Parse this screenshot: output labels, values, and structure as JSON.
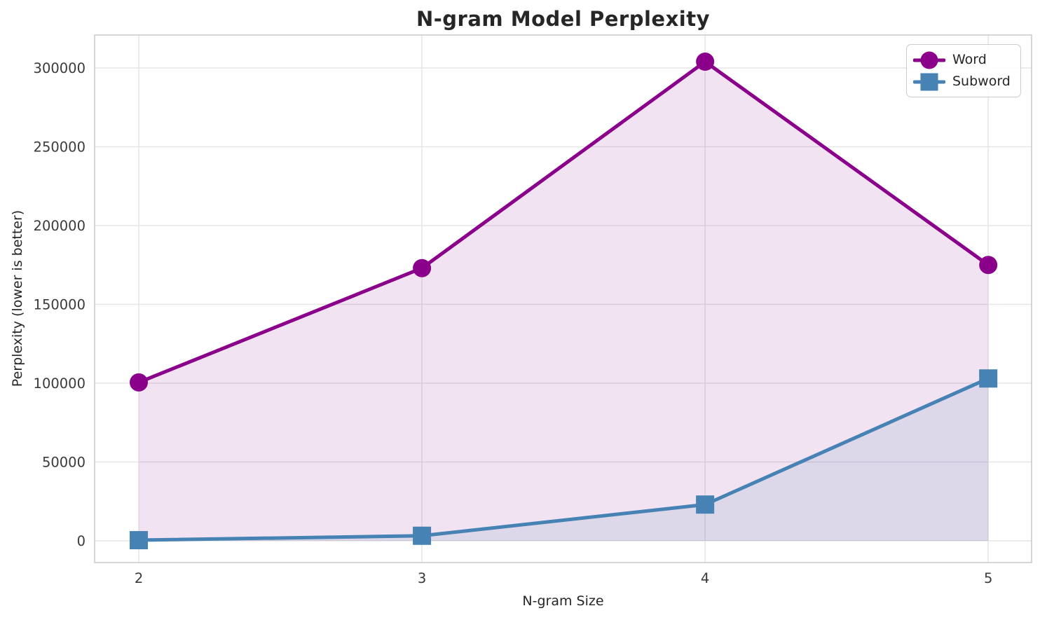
{
  "chart_data": {
    "type": "line",
    "title": "N-gram Model Perplexity",
    "xlabel": "N-gram Size",
    "ylabel": "Perplexity (lower is better)",
    "x": [
      2,
      3,
      4,
      5
    ],
    "xtick_labels": [
      "2",
      "3",
      "4",
      "5"
    ],
    "series": [
      {
        "name": "Word",
        "color": "#8B008B",
        "marker": "circle",
        "fill_alpha": 0.11,
        "values": [
          100500,
          173000,
          304000,
          175000
        ]
      },
      {
        "name": "Subword",
        "color": "#4682B4",
        "marker": "square",
        "fill_alpha": 0.12,
        "values": [
          400,
          3200,
          23000,
          103000
        ]
      }
    ],
    "yticks": [
      0,
      50000,
      100000,
      150000,
      200000,
      250000,
      300000
    ],
    "ylim": [
      -13800,
      320900
    ],
    "xlim": [
      1.844,
      5.153
    ],
    "fill_baseline": 0,
    "grid": true,
    "grid_color": "#e7e7e7",
    "spine_color": "#c9c9c9",
    "tick_color": "#3a3a3a",
    "legend_position": "upper right"
  }
}
